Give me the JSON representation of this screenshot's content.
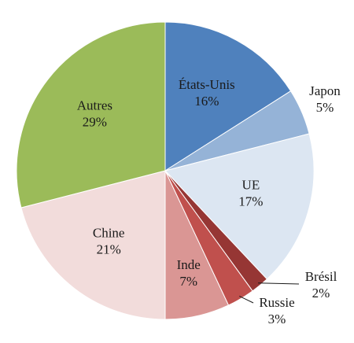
{
  "chart_data": {
    "type": "pie",
    "title": "",
    "start": "top, clockwise",
    "slices": [
      {
        "label": "États-Unis",
        "value": 16,
        "value_label": "16%",
        "color": "#4f81bd",
        "label_placement": "inside"
      },
      {
        "label": "Japon",
        "value": 5,
        "value_label": "5%",
        "color": "#95b3d7",
        "label_placement": "outside"
      },
      {
        "label": "UE",
        "value": 17,
        "value_label": "17%",
        "color": "#dce6f2",
        "label_placement": "inside"
      },
      {
        "label": "Brésil",
        "value": 2,
        "value_label": "2%",
        "color": "#963634",
        "label_placement": "outside-leader"
      },
      {
        "label": "Russie",
        "value": 3,
        "value_label": "3%",
        "color": "#c0504d",
        "label_placement": "outside-leader"
      },
      {
        "label": "Inde",
        "value": 7,
        "value_label": "7%",
        "color": "#da9694",
        "label_placement": "inside"
      },
      {
        "label": "Chine",
        "value": 21,
        "value_label": "21%",
        "color": "#f2dcdb",
        "label_placement": "inside"
      },
      {
        "label": "Autres",
        "value": 29,
        "value_label": "29%",
        "color": "#9bbb59",
        "label_placement": "inside"
      }
    ]
  }
}
